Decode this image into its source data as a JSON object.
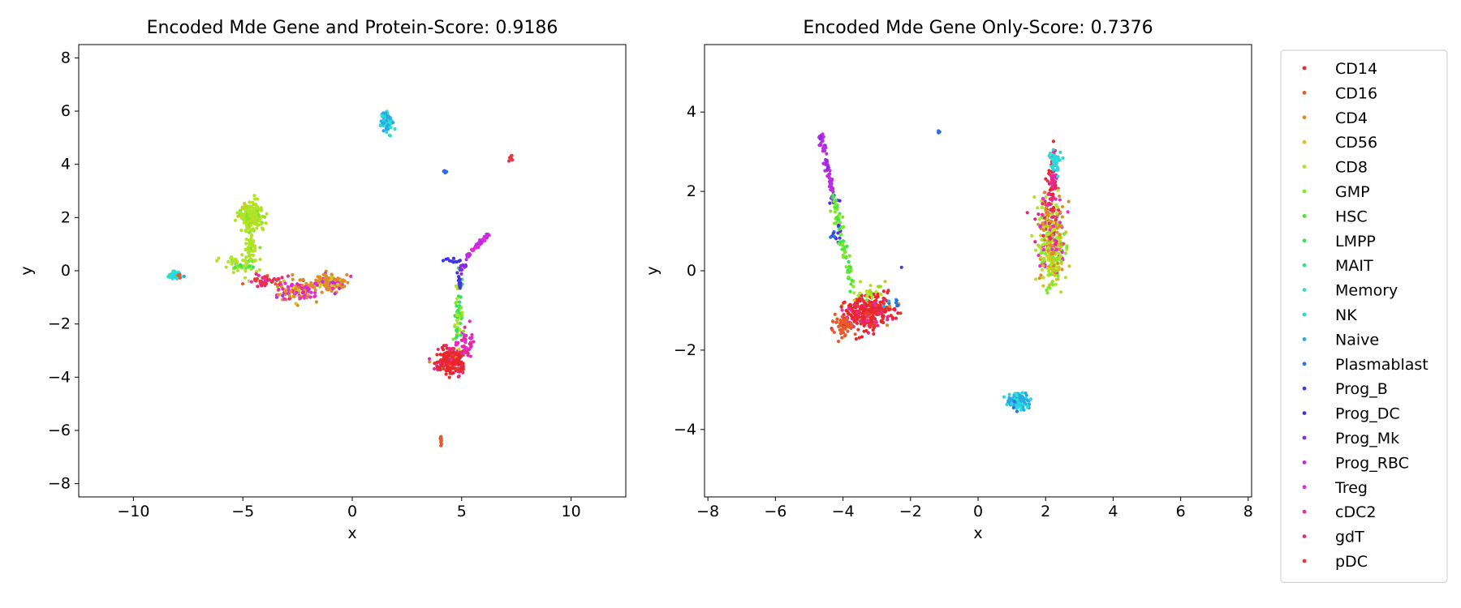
{
  "chart_data": [
    {
      "type": "scatter",
      "title": "Encoded Mde Gene and Protein-Score: 0.9186",
      "xlabel": "x",
      "ylabel": "y",
      "xlim": [
        -12.5,
        12.5
      ],
      "ylim": [
        -8.5,
        8.5
      ],
      "xticks": [
        -10,
        -5,
        0,
        5,
        10
      ],
      "yticks": [
        -8,
        -6,
        -4,
        -2,
        0,
        2,
        4,
        6,
        8
      ],
      "grid": false,
      "clusters": [
        {
          "x": -8.1,
          "y": -0.15,
          "sx": 0.15,
          "sy": 0.08,
          "n": 40,
          "mix": {
            "NK": 0.6,
            "Memory": 0.3,
            "Naive": 0.1
          }
        },
        {
          "x": -7.9,
          "y": -0.2,
          "sx": 0.05,
          "sy": 0.05,
          "n": 4,
          "mix": {
            "CD16": 1
          }
        },
        {
          "x": -4.6,
          "y": 2.1,
          "sx": 0.3,
          "sy": 0.25,
          "n": 160,
          "mix": {
            "CD8": 0.8,
            "CD56": 0.1,
            "GMP": 0.1
          }
        },
        {
          "x": -4.6,
          "y": 1.0,
          "sx": 0.15,
          "sy": 0.6,
          "n": 70,
          "mix": {
            "CD8": 0.9,
            "GMP": 0.1
          }
        },
        {
          "x": -5.1,
          "y": 0.25,
          "sx": 0.35,
          "sy": 0.15,
          "n": 45,
          "mix": {
            "CD8": 0.6,
            "GMP": 0.2,
            "HSC": 0.1,
            "LMPP": 0.1
          }
        },
        {
          "x": -4.0,
          "y": -0.4,
          "sx": 0.4,
          "sy": 0.08,
          "n": 40,
          "mix": {
            "gdT": 0.3,
            "pDC": 0.3,
            "CD16": 0.2,
            "Treg": 0.2
          }
        },
        {
          "x": -2.5,
          "y": -0.75,
          "sx": 0.55,
          "sy": 0.2,
          "n": 130,
          "mix": {
            "CD4": 0.35,
            "CD56": 0.2,
            "Treg": 0.2,
            "cDC2": 0.15,
            "Prog_RBC": 0.1
          }
        },
        {
          "x": -1.0,
          "y": -0.45,
          "sx": 0.3,
          "sy": 0.15,
          "n": 150,
          "mix": {
            "CD4": 0.7,
            "Treg": 0.1,
            "CD56": 0.1,
            "Prog_RBC": 0.1
          }
        },
        {
          "x": 1.6,
          "y": 5.6,
          "sx": 0.15,
          "sy": 0.2,
          "n": 80,
          "mix": {
            "Naive": 0.5,
            "NK": 0.3,
            "Memory": 0.2
          }
        },
        {
          "x": 4.2,
          "y": 3.72,
          "sx": 0.06,
          "sy": 0.03,
          "n": 8,
          "mix": {
            "Plasmablast": 1
          }
        },
        {
          "x": 7.25,
          "y": 4.25,
          "sx": 0.04,
          "sy": 0.1,
          "n": 8,
          "mix": {
            "gdT": 0.5,
            "pDC": 0.5
          }
        },
        {
          "x": 4.05,
          "y": -6.3,
          "sx": 0.04,
          "sy": 0.12,
          "n": 10,
          "mix": {
            "CD16": 1
          }
        },
        {
          "x": 4.5,
          "y": -3.35,
          "sx": 0.35,
          "sy": 0.25,
          "n": 240,
          "mix": {
            "CD14": 0.6,
            "gdT": 0.15,
            "pDC": 0.1,
            "cDC2": 0.1,
            "CD4": 0.05
          }
        },
        {
          "x": 5.2,
          "y": -2.7,
          "sx": 0.2,
          "sy": 0.25,
          "n": 40,
          "mix": {
            "cDC2": 0.7,
            "Treg": 0.3
          }
        },
        {
          "x": 4.85,
          "y": -1.7,
          "sx": 0.1,
          "sy": 0.5,
          "n": 50,
          "mix": {
            "GMP": 0.5,
            "LMPP": 0.3,
            "CD8": 0.2
          }
        },
        {
          "x": 4.9,
          "y": -0.3,
          "sx": 0.08,
          "sy": 0.35,
          "n": 20,
          "mix": {
            "Prog_DC": 0.4,
            "Prog_B": 0.3,
            "LMPP": 0.3
          }
        },
        {
          "x": 4.6,
          "y": 0.35,
          "sx": 0.2,
          "sy": 0.05,
          "n": 10,
          "mix": {
            "Prog_B": 0.5,
            "Prog_DC": 0.5
          }
        },
        {
          "x": 5.1,
          "y": 0.15,
          "sx": 0.1,
          "sy": 0.1,
          "n": 8,
          "mix": {
            "Prog_Mk": 1
          }
        }
      ],
      "lines": [
        {
          "x0": 5.2,
          "y0": 0.5,
          "x1": 6.2,
          "y1": 1.35,
          "n": 45,
          "w": 0.05,
          "mix": {
            "Prog_RBC": 0.7,
            "Treg": 0.3
          }
        }
      ]
    },
    {
      "type": "scatter",
      "title": "Encoded Mde Gene Only-Score: 0.7376",
      "xlabel": "x",
      "ylabel": "y",
      "xlim": [
        -8.1,
        8.1
      ],
      "ylim": [
        -5.7,
        5.7
      ],
      "xticks": [
        -8,
        -6,
        -4,
        -2,
        0,
        2,
        4,
        6,
        8
      ],
      "yticks": [
        -4,
        -2,
        0,
        2,
        4
      ],
      "grid": false,
      "clusters": [
        {
          "x": -3.3,
          "y": -1.05,
          "sx": 0.35,
          "sy": 0.22,
          "n": 300,
          "mix": {
            "CD14": 0.65,
            "pDC": 0.1,
            "gdT": 0.1,
            "cDC2": 0.1,
            "CD4": 0.05
          }
        },
        {
          "x": -4.0,
          "y": -1.4,
          "sx": 0.15,
          "sy": 0.18,
          "n": 45,
          "mix": {
            "CD16": 1
          }
        },
        {
          "x": -2.5,
          "y": -0.85,
          "sx": 0.15,
          "sy": 0.05,
          "n": 10,
          "mix": {
            "CD4": 0.5,
            "Naive": 0.2,
            "Plasmablast": 0.3
          }
        },
        {
          "x": -3.2,
          "y": -0.55,
          "sx": 0.25,
          "sy": 0.1,
          "n": 25,
          "mix": {
            "CD56": 0.4,
            "CD8": 0.4,
            "GMP": 0.2
          }
        },
        {
          "x": 2.2,
          "y": 0.5,
          "sx": 0.22,
          "sy": 0.4,
          "n": 280,
          "mix": {
            "CD8": 0.45,
            "CD56": 0.15,
            "GMP": 0.15,
            "CD4": 0.1,
            "Treg": 0.15
          }
        },
        {
          "x": 2.1,
          "y": 1.3,
          "sx": 0.2,
          "sy": 0.35,
          "n": 140,
          "mix": {
            "CD4": 0.4,
            "Treg": 0.2,
            "CD8": 0.2,
            "gdT": 0.2
          }
        },
        {
          "x": 2.2,
          "y": 2.2,
          "sx": 0.08,
          "sy": 0.35,
          "n": 70,
          "mix": {
            "gdT": 0.5,
            "cDC2": 0.3,
            "CD14": 0.2
          }
        },
        {
          "x": 2.3,
          "y": 2.75,
          "sx": 0.12,
          "sy": 0.15,
          "n": 35,
          "mix": {
            "NK": 0.6,
            "Memory": 0.4
          }
        },
        {
          "x": 1.2,
          "y": -3.3,
          "sx": 0.15,
          "sy": 0.13,
          "n": 110,
          "mix": {
            "Naive": 0.55,
            "NK": 0.25,
            "Memory": 0.15,
            "Plasmablast": 0.05
          }
        },
        {
          "x": -1.15,
          "y": 3.5,
          "sx": 0.02,
          "sy": 0.03,
          "n": 4,
          "mix": {
            "Plasmablast": 1
          }
        },
        {
          "x": -2.3,
          "y": 0.1,
          "sx": 0.02,
          "sy": 0.02,
          "n": 1,
          "mix": {
            "Prog_B": 1
          }
        },
        {
          "x": -4.2,
          "y": 0.8,
          "sx": 0.08,
          "sy": 0.15,
          "n": 15,
          "mix": {
            "Prog_DC": 0.5,
            "Prog_B": 0.3,
            "Plasmablast": 0.2
          }
        },
        {
          "x": -4.25,
          "y": 1.8,
          "sx": 0.06,
          "sy": 0.08,
          "n": 8,
          "mix": {
            "Prog_DC": 0.6,
            "Prog_Mk": 0.4
          }
        }
      ],
      "lines": [
        {
          "x0": -4.65,
          "y0": 3.45,
          "x1": -4.3,
          "y1": 1.9,
          "n": 70,
          "w": 0.04,
          "mix": {
            "Prog_RBC": 0.85,
            "Prog_Mk": 0.15
          }
        },
        {
          "x0": -4.3,
          "y0": 1.9,
          "x1": -3.7,
          "y1": -0.45,
          "n": 80,
          "w": 0.05,
          "mix": {
            "GMP": 0.5,
            "HSC": 0.3,
            "LMPP": 0.2
          }
        }
      ]
    }
  ],
  "legend": {
    "placement": "outside-right",
    "entries": [
      {
        "name": "CD14",
        "color": "#e8262b"
      },
      {
        "name": "CD16",
        "color": "#e8592a"
      },
      {
        "name": "CD4",
        "color": "#dd8e26"
      },
      {
        "name": "CD56",
        "color": "#d4c522"
      },
      {
        "name": "CD8",
        "color": "#b2e326"
      },
      {
        "name": "GMP",
        "color": "#7fe82a"
      },
      {
        "name": "HSC",
        "color": "#4ae835"
      },
      {
        "name": "LMPP",
        "color": "#2fe55a"
      },
      {
        "name": "MAIT",
        "color": "#2de48e"
      },
      {
        "name": "Memory",
        "color": "#2ee2c2"
      },
      {
        "name": "NK",
        "color": "#2ad8e4"
      },
      {
        "name": "Naive",
        "color": "#2aa9e3"
      },
      {
        "name": "Plasmablast",
        "color": "#2b70e4"
      },
      {
        "name": "Prog_B",
        "color": "#3340e4"
      },
      {
        "name": "Prog_DC",
        "color": "#502ae3"
      },
      {
        "name": "Prog_Mk",
        "color": "#8a2ae3"
      },
      {
        "name": "Prog_RBC",
        "color": "#bd2ce4"
      },
      {
        "name": "Treg",
        "color": "#e52ad8"
      },
      {
        "name": "cDC2",
        "color": "#e52aa5"
      },
      {
        "name": "gdT",
        "color": "#e52a72"
      },
      {
        "name": "pDC",
        "color": "#e8392f"
      }
    ]
  }
}
